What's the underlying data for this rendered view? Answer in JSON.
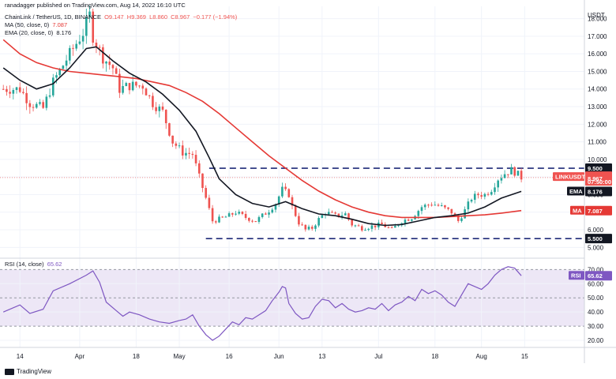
{
  "header": {
    "published_by": "ranadagger published on TradingView.com, Aug 14, 2022 16:10 UTC",
    "symbol_line": {
      "name": "ChainLink / TetherUS, 1D, BINANCE",
      "open": "O9.147",
      "high": "H9.369",
      "low": "L8.860",
      "close": "C8.967",
      "change": "−0.177 (−1.94%)"
    },
    "ma_line": "MA (50, close, 0)",
    "ma_value": "7.087",
    "ema_line": "EMA (20, close, 0)",
    "ema_value": "8.176"
  },
  "colors": {
    "up": "#26a69a",
    "down": "#ef5350",
    "ma": "#e53935",
    "ema": "#131722",
    "rsi": "#7e57c2",
    "rsi_band": "#ede7f6",
    "tag_dark": "#131722",
    "tag_red": "#e53935",
    "tag_price": "#ef5350"
  },
  "chart_data": {
    "type": "candlestick",
    "price_axis": {
      "unit": "USDT",
      "ticks": [
        "18.000",
        "17.000",
        "16.000",
        "15.000",
        "14.000",
        "13.000",
        "12.000",
        "11.000",
        "10.000",
        "9.000",
        "8.000",
        "7.000",
        "6.000",
        "5.000"
      ],
      "range": [
        4.7,
        18.7
      ]
    },
    "x_axis": {
      "ticks": [
        "14",
        "Apr",
        "18",
        "May",
        "16",
        "Jun",
        "13",
        "Jul",
        "18",
        "Aug",
        "15"
      ],
      "tick_days": [
        0,
        18,
        35,
        48,
        63,
        78,
        91,
        108,
        125,
        139,
        152
      ],
      "range_days": [
        -6,
        170
      ]
    },
    "resistance": 9.5,
    "support": 5.5,
    "labels": {
      "resistance": "9.500",
      "support": "5.500",
      "symbol": "LINKUSDT",
      "price": "8.967",
      "countdown": "07:50:00",
      "ema_label": "EMA",
      "ema_value": "8.176",
      "ma_label": "MA",
      "ma_value": "7.087"
    },
    "anchors": [
      [
        0,
        14.0
      ],
      [
        3,
        13.2
      ],
      [
        7,
        12.9
      ],
      [
        10,
        14.4
      ],
      [
        15,
        16.0
      ],
      [
        19,
        17.2
      ],
      [
        21,
        18.2
      ],
      [
        22,
        17.0
      ],
      [
        25,
        15.8
      ],
      [
        28,
        15.2
      ],
      [
        30,
        14.0
      ],
      [
        33,
        14.2
      ],
      [
        37,
        14.2
      ],
      [
        40,
        13.2
      ],
      [
        43,
        12.7
      ],
      [
        46,
        11.0
      ],
      [
        49,
        10.4
      ],
      [
        52,
        10.3
      ],
      [
        54,
        9.0
      ],
      [
        56,
        7.8
      ],
      [
        58,
        6.5
      ],
      [
        60,
        6.6
      ],
      [
        63,
        6.8
      ],
      [
        65,
        7.0
      ],
      [
        68,
        6.7
      ],
      [
        71,
        6.5
      ],
      [
        73,
        6.8
      ],
      [
        75,
        7.1
      ],
      [
        77,
        7.5
      ],
      [
        79,
        8.3
      ],
      [
        81,
        8.0
      ],
      [
        82,
        7.3
      ],
      [
        84,
        6.4
      ],
      [
        86,
        6.0
      ],
      [
        88,
        6.1
      ],
      [
        90,
        6.6
      ],
      [
        92,
        7.0
      ],
      [
        95,
        6.8
      ],
      [
        98,
        6.9
      ],
      [
        100,
        6.3
      ],
      [
        103,
        6.1
      ],
      [
        106,
        6.2
      ],
      [
        109,
        6.3
      ],
      [
        112,
        6.0
      ],
      [
        115,
        6.5
      ],
      [
        118,
        6.7
      ],
      [
        121,
        7.3
      ],
      [
        124,
        7.5
      ],
      [
        127,
        7.3
      ],
      [
        130,
        7.0
      ],
      [
        132,
        6.5
      ],
      [
        134,
        7.1
      ],
      [
        136,
        7.8
      ],
      [
        138,
        8.0
      ],
      [
        140,
        8.0
      ],
      [
        142,
        8.3
      ],
      [
        144,
        8.9
      ],
      [
        146,
        9.2
      ],
      [
        148,
        9.4
      ],
      [
        150,
        9.15
      ],
      [
        151,
        8.97
      ]
    ],
    "ma50_anchors": [
      [
        -5,
        16.8
      ],
      [
        0,
        16.0
      ],
      [
        5,
        15.5
      ],
      [
        10,
        15.2
      ],
      [
        15,
        15.0
      ],
      [
        20,
        14.9
      ],
      [
        25,
        14.8
      ],
      [
        30,
        14.7
      ],
      [
        35,
        14.6
      ],
      [
        40,
        14.4
      ],
      [
        45,
        14.2
      ],
      [
        50,
        13.8
      ],
      [
        55,
        13.3
      ],
      [
        60,
        12.6
      ],
      [
        65,
        11.8
      ],
      [
        70,
        11.0
      ],
      [
        75,
        10.2
      ],
      [
        80,
        9.5
      ],
      [
        85,
        8.8
      ],
      [
        90,
        8.2
      ],
      [
        95,
        7.7
      ],
      [
        100,
        7.3
      ],
      [
        105,
        7.0
      ],
      [
        110,
        6.8
      ],
      [
        115,
        6.7
      ],
      [
        120,
        6.7
      ],
      [
        125,
        6.7
      ],
      [
        130,
        6.75
      ],
      [
        135,
        6.8
      ],
      [
        140,
        6.85
      ],
      [
        145,
        6.95
      ],
      [
        151,
        7.09
      ]
    ],
    "ema20_anchors": [
      [
        -5,
        15.2
      ],
      [
        0,
        14.5
      ],
      [
        5,
        14.0
      ],
      [
        10,
        14.3
      ],
      [
        15,
        15.2
      ],
      [
        20,
        16.3
      ],
      [
        23,
        16.4
      ],
      [
        28,
        15.6
      ],
      [
        33,
        14.9
      ],
      [
        38,
        14.4
      ],
      [
        43,
        13.7
      ],
      [
        48,
        12.8
      ],
      [
        53,
        11.6
      ],
      [
        57,
        10.1
      ],
      [
        60,
        8.9
      ],
      [
        65,
        8.0
      ],
      [
        70,
        7.5
      ],
      [
        75,
        7.3
      ],
      [
        80,
        7.6
      ],
      [
        85,
        7.2
      ],
      [
        90,
        6.9
      ],
      [
        95,
        6.8
      ],
      [
        100,
        6.6
      ],
      [
        105,
        6.35
      ],
      [
        110,
        6.25
      ],
      [
        115,
        6.3
      ],
      [
        120,
        6.5
      ],
      [
        125,
        6.7
      ],
      [
        130,
        6.8
      ],
      [
        135,
        6.95
      ],
      [
        140,
        7.3
      ],
      [
        145,
        7.8
      ],
      [
        151,
        8.18
      ]
    ],
    "rsi": {
      "title": "RSI (14, close)",
      "value": "65.62",
      "ticks": [
        "70.00",
        "60.00",
        "50.00",
        "40.00",
        "30.00",
        "20.00"
      ],
      "range": [
        15,
        78
      ],
      "band": [
        30,
        70
      ],
      "anchors": [
        [
          -5,
          40
        ],
        [
          0,
          45
        ],
        [
          3,
          39
        ],
        [
          7,
          42
        ],
        [
          10,
          55
        ],
        [
          15,
          60
        ],
        [
          20,
          66
        ],
        [
          22,
          69
        ],
        [
          24,
          61
        ],
        [
          26,
          47
        ],
        [
          29,
          41
        ],
        [
          31,
          37
        ],
        [
          33,
          40
        ],
        [
          36,
          38
        ],
        [
          39,
          35
        ],
        [
          42,
          33
        ],
        [
          45,
          32
        ],
        [
          48,
          34
        ],
        [
          50,
          35
        ],
        [
          52,
          38
        ],
        [
          54,
          30
        ],
        [
          56,
          24
        ],
        [
          58,
          20
        ],
        [
          60,
          23
        ],
        [
          62,
          28
        ],
        [
          64,
          33
        ],
        [
          66,
          31
        ],
        [
          68,
          36
        ],
        [
          70,
          35
        ],
        [
          72,
          38
        ],
        [
          74,
          41
        ],
        [
          76,
          48
        ],
        [
          78,
          54
        ],
        [
          79,
          58
        ],
        [
          80,
          57
        ],
        [
          81,
          46
        ],
        [
          83,
          39
        ],
        [
          85,
          35
        ],
        [
          87,
          36
        ],
        [
          89,
          44
        ],
        [
          91,
          49
        ],
        [
          93,
          48
        ],
        [
          95,
          43
        ],
        [
          97,
          46
        ],
        [
          99,
          42
        ],
        [
          101,
          40
        ],
        [
          103,
          41
        ],
        [
          105,
          43
        ],
        [
          107,
          42
        ],
        [
          109,
          46
        ],
        [
          111,
          41
        ],
        [
          113,
          45
        ],
        [
          115,
          47
        ],
        [
          117,
          51
        ],
        [
          119,
          48
        ],
        [
          121,
          56
        ],
        [
          123,
          53
        ],
        [
          125,
          55
        ],
        [
          127,
          52
        ],
        [
          129,
          47
        ],
        [
          131,
          44
        ],
        [
          133,
          52
        ],
        [
          135,
          60
        ],
        [
          137,
          58
        ],
        [
          139,
          56
        ],
        [
          141,
          60
        ],
        [
          143,
          66
        ],
        [
          145,
          70
        ],
        [
          147,
          72
        ],
        [
          149,
          71
        ],
        [
          151,
          65.6
        ]
      ]
    }
  },
  "footer": {
    "brand": "TradingView"
  }
}
